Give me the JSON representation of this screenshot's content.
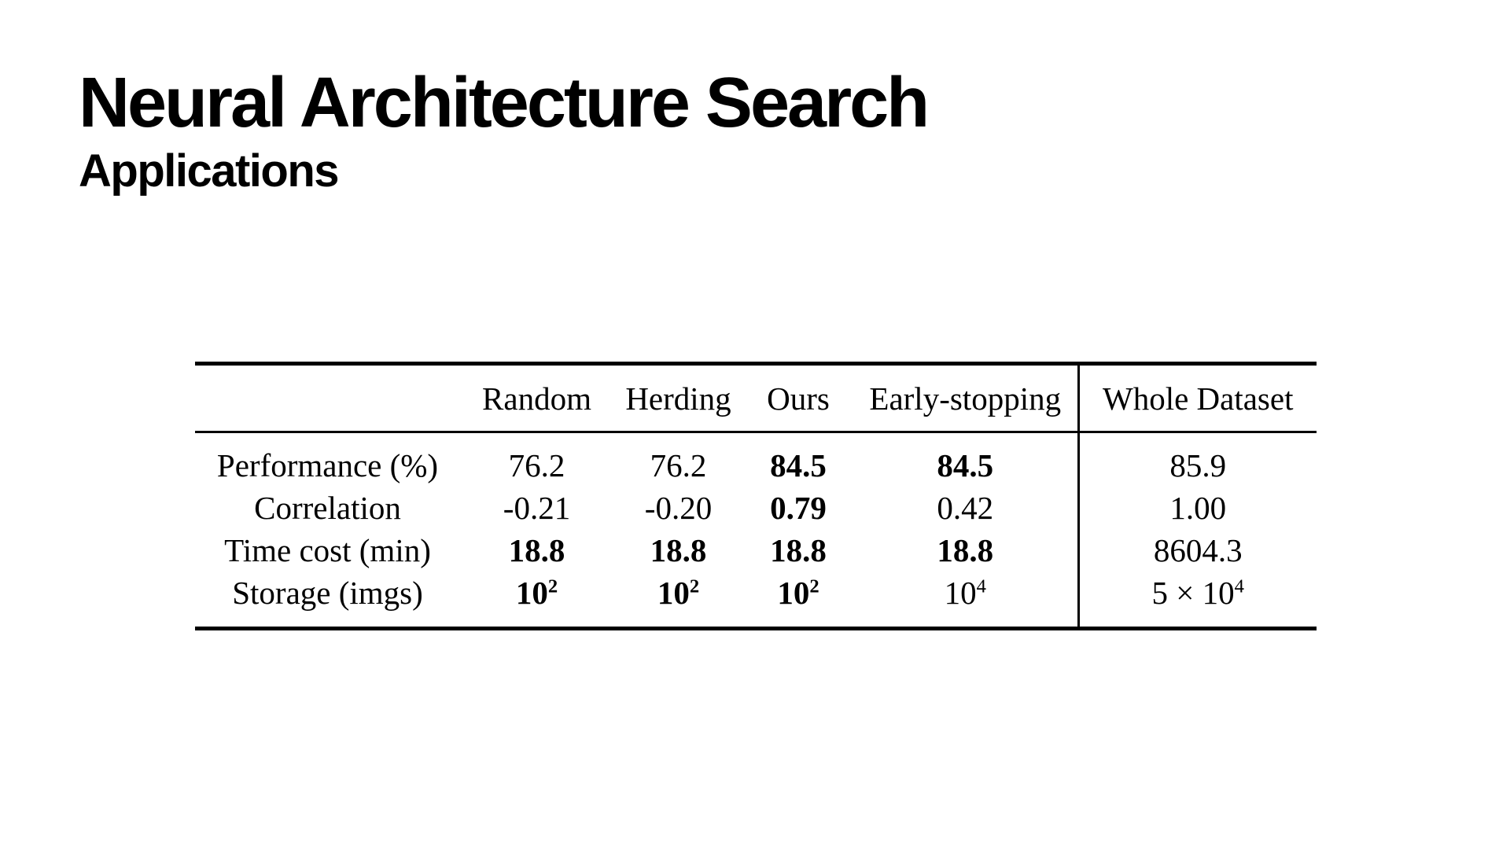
{
  "slide": {
    "title": "Neural Architecture Search",
    "subtitle": "Applications"
  },
  "table": {
    "columns": [
      "",
      "Random",
      "Herding",
      "Ours",
      "Early-stopping",
      "Whole Dataset"
    ],
    "rows": [
      {
        "label": "Performance (%)",
        "cells": [
          {
            "text": "76.2",
            "bold": false
          },
          {
            "text": "76.2",
            "bold": false
          },
          {
            "text": "84.5",
            "bold": true
          },
          {
            "text": "84.5",
            "bold": true
          },
          {
            "text": "85.9",
            "bold": false
          }
        ]
      },
      {
        "label": "Correlation",
        "cells": [
          {
            "text": "-0.21",
            "bold": false
          },
          {
            "text": "-0.20",
            "bold": false
          },
          {
            "text": "0.79",
            "bold": true
          },
          {
            "text": "0.42",
            "bold": false
          },
          {
            "text": "1.00",
            "bold": false
          }
        ]
      },
      {
        "label": "Time cost (min)",
        "cells": [
          {
            "text": "18.8",
            "bold": true
          },
          {
            "text": "18.8",
            "bold": true
          },
          {
            "text": "18.8",
            "bold": true
          },
          {
            "text": "18.8",
            "bold": true
          },
          {
            "text": "8604.3",
            "bold": false
          }
        ]
      },
      {
        "label": "Storage (imgs)",
        "cells": [
          {
            "text": "10",
            "sup": "2",
            "bold": true
          },
          {
            "text": "10",
            "sup": "2",
            "bold": true
          },
          {
            "text": "10",
            "sup": "2",
            "bold": true
          },
          {
            "text": "10",
            "sup": "4",
            "bold": false
          },
          {
            "text": "5 × 10",
            "sup": "4",
            "bold": false
          }
        ]
      }
    ]
  }
}
